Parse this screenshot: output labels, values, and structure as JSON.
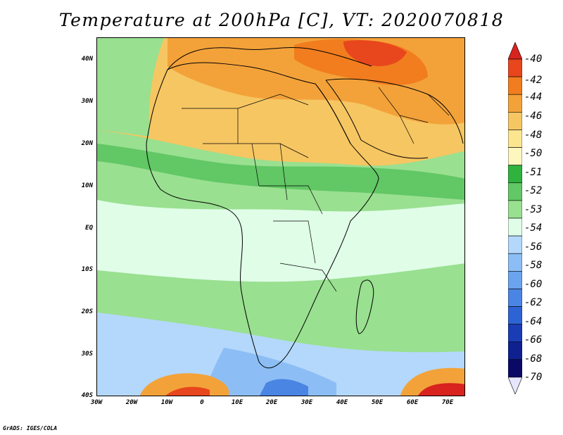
{
  "title": "Temperature at 200hPa [C], VT: 2020070818",
  "credit": "GrADS: IGES/COLA",
  "map": {
    "lat_labels": [
      "40N",
      "30N",
      "20N",
      "10N",
      "EQ",
      "10S",
      "20S",
      "30S",
      "40S"
    ],
    "lon_labels": [
      "30W",
      "20W",
      "10W",
      "0",
      "10E",
      "20E",
      "30E",
      "40E",
      "50E",
      "60E",
      "70E"
    ],
    "lat_range": [
      -40,
      45
    ],
    "lon_range": [
      -30,
      75
    ]
  },
  "colorbar": {
    "labels": [
      "-40",
      "-42",
      "-44",
      "-46",
      "-48",
      "-50",
      "-51",
      "-52",
      "-53",
      "-54",
      "-56",
      "-58",
      "-60",
      "-62",
      "-64",
      "-66",
      "-68",
      "-70"
    ],
    "colors": [
      "#d8231f",
      "#e8461d",
      "#f17d1f",
      "#f3a23a",
      "#f6c662",
      "#fbe58f",
      "#fdf7bf",
      "#2fb23e",
      "#62c765",
      "#99e090",
      "#e0fde8",
      "#b4d8fb",
      "#8cbef5",
      "#6aa3ee",
      "#4a85e3",
      "#2d63d4",
      "#1a3cb5",
      "#0f2090",
      "#0a0a66",
      "#e6e6ff"
    ]
  }
}
